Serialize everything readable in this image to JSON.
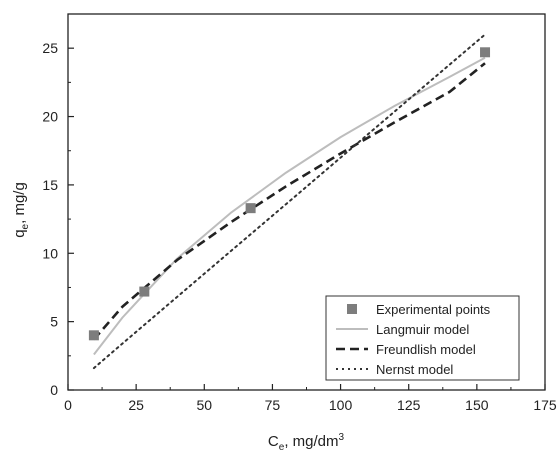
{
  "chart_data": {
    "type": "scatter",
    "title": "",
    "xlabel": {
      "main": "C",
      "sub": "e",
      "unit": ", mg/dm",
      "sup": "3"
    },
    "ylabel": {
      "main": "q",
      "sub": "e",
      "unit": ", mg/g"
    },
    "xlim": [
      0,
      175
    ],
    "ylim": [
      0,
      27.5
    ],
    "xticks": [
      0,
      25,
      50,
      75,
      100,
      125,
      150,
      175
    ],
    "yticks": [
      0,
      5,
      10,
      15,
      20,
      25
    ],
    "grid": false,
    "legend_position": "bottom-right",
    "series": [
      {
        "name": "Experimental points",
        "kind": "markers",
        "marker": "square",
        "color": "#7d7d7d",
        "x": [
          9.5,
          28,
          67,
          153
        ],
        "y": [
          4.0,
          7.2,
          13.3,
          24.7
        ]
      },
      {
        "name": "Langmuir model",
        "kind": "line",
        "style": "solid",
        "color": "#bdbdbd",
        "x": [
          9.5,
          20,
          40,
          60,
          80,
          100,
          120,
          140,
          153
        ],
        "y": [
          2.6,
          5.3,
          9.6,
          13.0,
          15.9,
          18.5,
          20.8,
          22.9,
          24.3
        ]
      },
      {
        "name": "Freundlish model",
        "kind": "line",
        "style": "dashed",
        "color": "#222222",
        "x": [
          9.5,
          20,
          40,
          60,
          80,
          100,
          120,
          140,
          153
        ],
        "y": [
          3.7,
          6.1,
          9.5,
          12.3,
          14.9,
          17.3,
          19.6,
          21.8,
          23.9
        ]
      },
      {
        "name": "Nernst model",
        "kind": "line",
        "style": "dotted",
        "color": "#333333",
        "x": [
          9.5,
          20,
          40,
          60,
          80,
          100,
          120,
          140,
          153
        ],
        "y": [
          1.6,
          3.4,
          6.8,
          10.2,
          13.6,
          17.0,
          20.4,
          23.8,
          26.0
        ]
      }
    ]
  }
}
